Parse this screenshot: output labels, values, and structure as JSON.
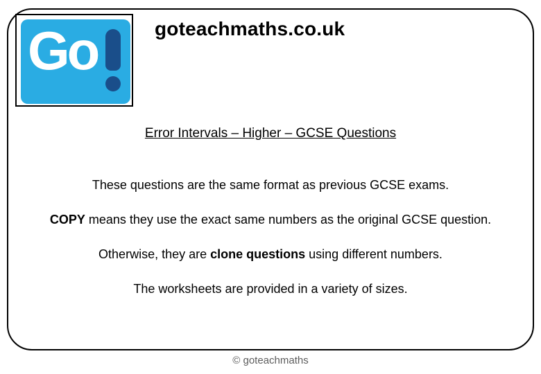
{
  "logo": {
    "text": "Go",
    "accent_color": "#2aace3",
    "bang_color": "#1a4e8a"
  },
  "site_title": "goteachmaths.co.uk",
  "worksheet_title": "Error Intervals – Higher – GCSE Questions",
  "lines": {
    "l1": "These questions are the same format as previous GCSE exams.",
    "l2_bold": "COPY",
    "l2_rest": " means they use the exact same numbers as the original GCSE question.",
    "l3_a": "Otherwise, they are ",
    "l3_bold": "clone questions",
    "l3_b": " using different numbers.",
    "l4": "The worksheets are provided in a variety of sizes."
  },
  "footer": "© goteachmaths"
}
